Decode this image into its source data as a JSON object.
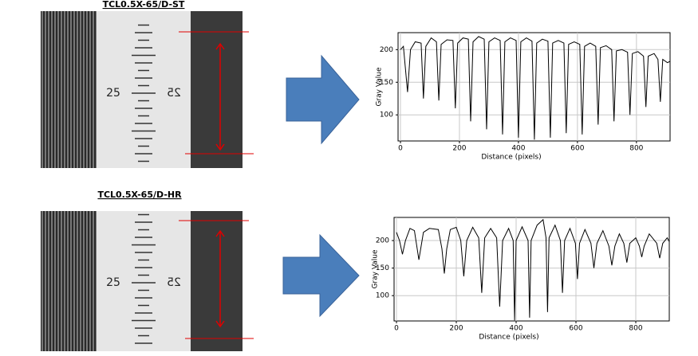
{
  "panels": [
    {
      "title": "TCL0.5X-65/D-ST",
      "photo_labels": [
        "25",
        "25"
      ]
    },
    {
      "title": "TCL0.5X-65/D-HR",
      "photo_labels": [
        "25",
        "25"
      ]
    }
  ],
  "chart_data": [
    {
      "type": "line",
      "xlabel": "Distance (pixels)",
      "ylabel": "Gray Value",
      "xlim": [
        0,
        914
      ],
      "ylim": [
        60,
        226
      ],
      "xticks": [
        0,
        200,
        400,
        600,
        800
      ],
      "yticks": [
        100,
        150,
        200
      ],
      "grid": true,
      "x": [
        0,
        10,
        24,
        34,
        50,
        70,
        78,
        86,
        104,
        122,
        130,
        138,
        158,
        178,
        186,
        194,
        212,
        230,
        238,
        246,
        265,
        284,
        292,
        300,
        319,
        338,
        346,
        354,
        373,
        392,
        400,
        408,
        427,
        446,
        454,
        462,
        481,
        500,
        508,
        516,
        535,
        554,
        562,
        570,
        589,
        608,
        616,
        624,
        643,
        662,
        670,
        678,
        697,
        716,
        724,
        732,
        751,
        770,
        778,
        786,
        805,
        824,
        832,
        840,
        860,
        873,
        881,
        889,
        905,
        914
      ],
      "series": [
        {
          "color": "#000000",
          "values": [
            200,
            205,
            135,
            200,
            212,
            210,
            125,
            205,
            218,
            212,
            122,
            208,
            215,
            214,
            110,
            210,
            218,
            216,
            90,
            212,
            220,
            216,
            78,
            212,
            218,
            214,
            70,
            212,
            218,
            214,
            65,
            212,
            218,
            213,
            62,
            210,
            216,
            213,
            65,
            210,
            214,
            210,
            72,
            208,
            212,
            208,
            70,
            205,
            210,
            205,
            85,
            203,
            206,
            200,
            90,
            198,
            200,
            196,
            100,
            194,
            197,
            190,
            112,
            190,
            194,
            185,
            120,
            185,
            180,
            182
          ]
        }
      ]
    },
    {
      "type": "line",
      "xlabel": "Distance (pixels)",
      "ylabel": "Gray Value",
      "xlim": [
        0,
        912
      ],
      "ylim": [
        54,
        242
      ],
      "xticks": [
        0,
        200,
        400,
        600,
        800
      ],
      "yticks": [
        100,
        150,
        200
      ],
      "grid": true,
      "x": [
        0,
        10,
        20,
        30,
        45,
        60,
        75,
        90,
        110,
        140,
        152,
        160,
        168,
        180,
        200,
        215,
        225,
        235,
        255,
        275,
        285,
        295,
        315,
        335,
        345,
        355,
        375,
        390,
        395,
        400,
        420,
        440,
        445,
        450,
        470,
        490,
        500,
        505,
        510,
        530,
        548,
        555,
        562,
        580,
        598,
        605,
        612,
        630,
        650,
        660,
        670,
        690,
        710,
        720,
        730,
        745,
        760,
        770,
        780,
        800,
        812,
        820,
        828,
        845,
        870,
        880,
        890,
        905,
        912
      ],
      "series": [
        {
          "color": "#000000",
          "values": [
            215,
            200,
            175,
            200,
            222,
            218,
            165,
            215,
            222,
            220,
            185,
            140,
            185,
            220,
            224,
            200,
            135,
            200,
            224,
            205,
            105,
            205,
            222,
            205,
            80,
            200,
            222,
            200,
            55,
            200,
            225,
            200,
            60,
            200,
            228,
            238,
            205,
            70,
            205,
            228,
            200,
            105,
            200,
            222,
            195,
            130,
            195,
            220,
            195,
            150,
            195,
            218,
            190,
            155,
            190,
            212,
            195,
            160,
            195,
            205,
            190,
            170,
            190,
            212,
            195,
            168,
            195,
            205,
            198
          ]
        }
      ]
    }
  ]
}
